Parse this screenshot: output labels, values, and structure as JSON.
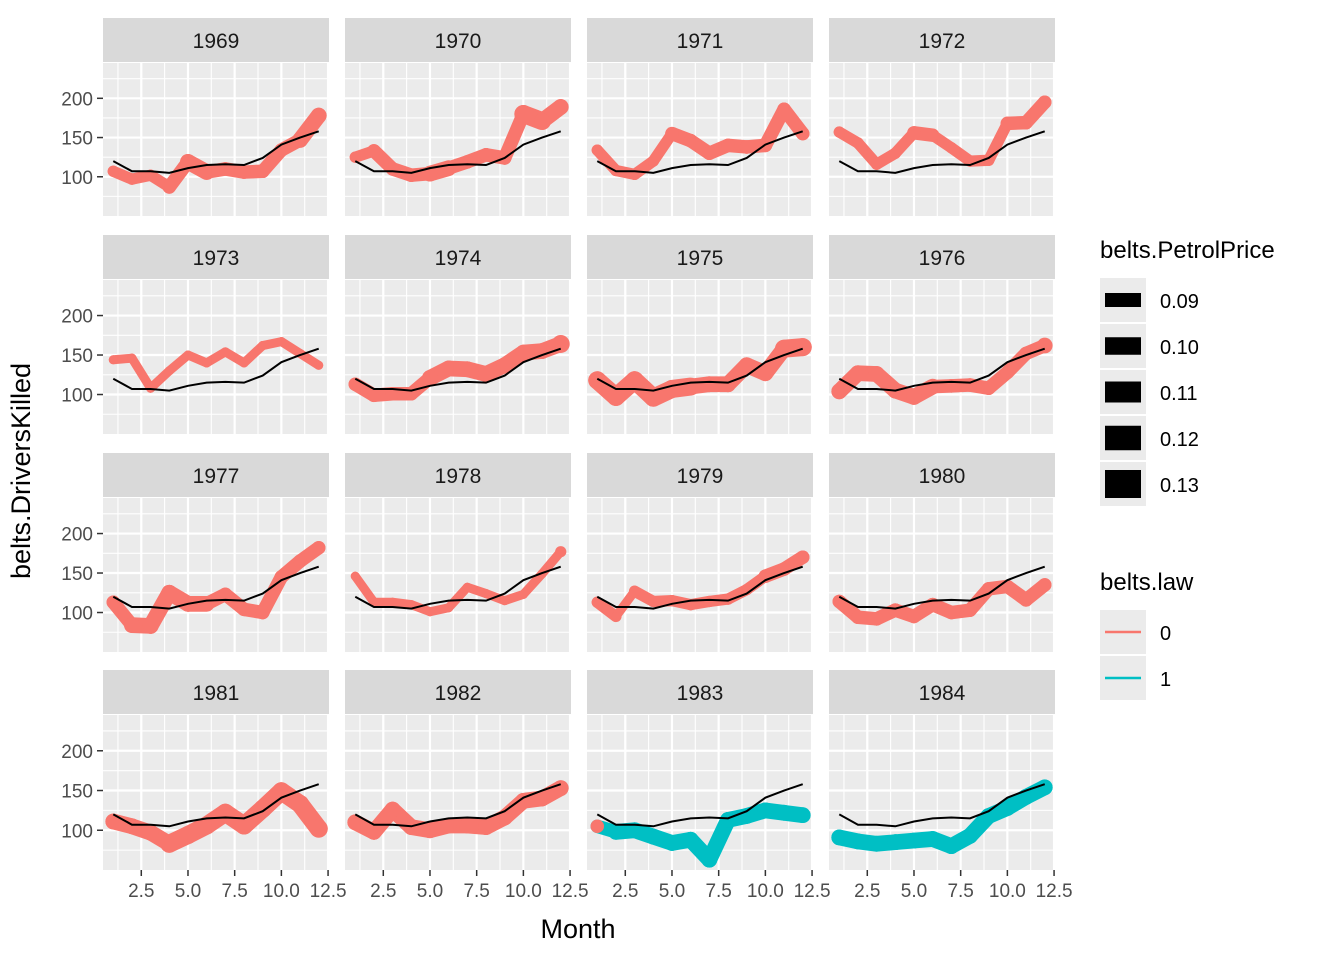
{
  "chart_data": {
    "type": "line",
    "xlabel": "Month",
    "ylabel": "belts.DriversKilled",
    "xlim": [
      0.45,
      12.55
    ],
    "ylim": [
      50,
      245
    ],
    "x_ticks": [
      2.5,
      5.0,
      7.5,
      10.0,
      12.5
    ],
    "x_tick_labels": [
      "2.5",
      "5.0",
      "7.5",
      "10.0",
      "12.5"
    ],
    "y_ticks": [
      100,
      150,
      200
    ],
    "y_tick_labels": [
      "100",
      "150",
      "200"
    ],
    "months": [
      1,
      2,
      3,
      4,
      5,
      6,
      7,
      8,
      9,
      10,
      11,
      12
    ],
    "reference_line": [
      120,
      107,
      107,
      105,
      111,
      115,
      116,
      115,
      124,
      141,
      150,
      158
    ],
    "panels": [
      {
        "year": "1969",
        "law": [
          0,
          0,
          0,
          0,
          0,
          0,
          0,
          0,
          0,
          0,
          0,
          0
        ],
        "petrol": [
          0.1,
          0.1,
          0.1,
          0.11,
          0.12,
          0.11,
          0.11,
          0.11,
          0.11,
          0.11,
          0.12,
          0.12
        ],
        "values": [
          107,
          97,
          102,
          87,
          119,
          106,
          110,
          106,
          107,
          134,
          147,
          178
        ]
      },
      {
        "year": "1970",
        "law": [
          0,
          0,
          0,
          0,
          0,
          0,
          0,
          0,
          0,
          0,
          0,
          0
        ],
        "petrol": [
          0.1,
          0.11,
          0.11,
          0.11,
          0.12,
          0.11,
          0.11,
          0.11,
          0.11,
          0.13,
          0.12,
          0.12
        ],
        "values": [
          125,
          133,
          110,
          102,
          104,
          111,
          119,
          128,
          124,
          180,
          171,
          189
        ]
      },
      {
        "year": "1971",
        "law": [
          0,
          0,
          0,
          0,
          0,
          0,
          0,
          0,
          0,
          0,
          0,
          0
        ],
        "petrol": [
          0.1,
          0.1,
          0.1,
          0.1,
          0.11,
          0.11,
          0.11,
          0.11,
          0.11,
          0.11,
          0.11,
          0.11
        ],
        "values": [
          134,
          108,
          103,
          120,
          155,
          146,
          130,
          140,
          138,
          140,
          186,
          155
        ]
      },
      {
        "year": "1972",
        "law": [
          0,
          0,
          0,
          0,
          0,
          0,
          0,
          0,
          0,
          0,
          0,
          0
        ],
        "petrol": [
          0.1,
          0.1,
          0.1,
          0.1,
          0.11,
          0.1,
          0.1,
          0.1,
          0.1,
          0.11,
          0.11,
          0.11
        ],
        "values": [
          157,
          143,
          116,
          130,
          156,
          153,
          137,
          120,
          121,
          168,
          169,
          195
        ]
      },
      {
        "year": "1973",
        "law": [
          0,
          0,
          0,
          0,
          0,
          0,
          0,
          0,
          0,
          0,
          0,
          0
        ],
        "petrol": [
          0.09,
          0.09,
          0.09,
          0.09,
          0.09,
          0.09,
          0.09,
          0.09,
          0.09,
          0.09,
          0.09,
          0.09
        ],
        "values": [
          144,
          146,
          108,
          130,
          150,
          140,
          154,
          140,
          162,
          167,
          152,
          137
        ]
      },
      {
        "year": "1974",
        "law": [
          0,
          0,
          0,
          0,
          0,
          0,
          0,
          0,
          0,
          0,
          0,
          0
        ],
        "petrol": [
          0.11,
          0.11,
          0.11,
          0.11,
          0.12,
          0.12,
          0.12,
          0.12,
          0.12,
          0.12,
          0.12,
          0.13
        ],
        "values": [
          113,
          99,
          101,
          101,
          121,
          133,
          132,
          126,
          137,
          153,
          155,
          164
        ]
      },
      {
        "year": "1975",
        "law": [
          0,
          0,
          0,
          0,
          0,
          0,
          0,
          0,
          0,
          0,
          0,
          0
        ],
        "petrol": [
          0.13,
          0.13,
          0.13,
          0.13,
          0.13,
          0.12,
          0.12,
          0.12,
          0.12,
          0.12,
          0.13,
          0.13
        ],
        "values": [
          118,
          97,
          118,
          96,
          107,
          110,
          113,
          113,
          137,
          127,
          158,
          160
        ]
      },
      {
        "year": "1976",
        "law": [
          0,
          0,
          0,
          0,
          0,
          0,
          0,
          0,
          0,
          0,
          0,
          0
        ],
        "petrol": [
          0.12,
          0.12,
          0.12,
          0.12,
          0.12,
          0.11,
          0.11,
          0.11,
          0.11,
          0.11,
          0.11,
          0.12
        ],
        "values": [
          104,
          127,
          126,
          105,
          97,
          110,
          111,
          112,
          108,
          128,
          152,
          162
        ]
      },
      {
        "year": "1977",
        "law": [
          0,
          0,
          0,
          0,
          0,
          0,
          0,
          0,
          0,
          0,
          0,
          0
        ],
        "petrol": [
          0.11,
          0.12,
          0.12,
          0.12,
          0.12,
          0.11,
          0.11,
          0.11,
          0.11,
          0.11,
          0.11,
          0.11
        ],
        "values": [
          113,
          84,
          83,
          125,
          111,
          111,
          123,
          104,
          100,
          145,
          165,
          182
        ]
      },
      {
        "year": "1978",
        "law": [
          0,
          0,
          0,
          0,
          0,
          0,
          0,
          0,
          0,
          0,
          0,
          0
        ],
        "petrol": [
          0.09,
          0.09,
          0.09,
          0.09,
          0.09,
          0.09,
          0.09,
          0.09,
          0.09,
          0.09,
          0.09,
          0.1
        ],
        "values": [
          146,
          113,
          113,
          110,
          101,
          106,
          132,
          124,
          115,
          123,
          149,
          177
        ]
      },
      {
        "year": "1979",
        "law": [
          0,
          0,
          0,
          0,
          0,
          0,
          0,
          0,
          0,
          0,
          0,
          0
        ],
        "petrol": [
          0.1,
          0.09,
          0.1,
          0.1,
          0.1,
          0.1,
          0.1,
          0.1,
          0.1,
          0.11,
          0.11,
          0.11
        ],
        "values": [
          113,
          95,
          127,
          114,
          115,
          110,
          114,
          117,
          129,
          146,
          155,
          170
        ]
      },
      {
        "year": "1980",
        "law": [
          0,
          0,
          0,
          0,
          0,
          0,
          0,
          0,
          0,
          0,
          0,
          0
        ],
        "petrol": [
          0.11,
          0.11,
          0.11,
          0.11,
          0.11,
          0.11,
          0.11,
          0.11,
          0.11,
          0.11,
          0.11,
          0.11
        ],
        "values": [
          114,
          94,
          92,
          103,
          95,
          110,
          100,
          103,
          130,
          133,
          116,
          135
        ]
      },
      {
        "year": "1981",
        "law": [
          0,
          0,
          0,
          0,
          0,
          0,
          0,
          0,
          0,
          0,
          0,
          0
        ],
        "petrol": [
          0.12,
          0.12,
          0.12,
          0.13,
          0.13,
          0.13,
          0.13,
          0.13,
          0.13,
          0.13,
          0.13,
          0.13
        ],
        "values": [
          111,
          105,
          97,
          83,
          94,
          106,
          122,
          106,
          127,
          149,
          133,
          102
        ]
      },
      {
        "year": "1982",
        "law": [
          0,
          0,
          0,
          0,
          0,
          0,
          0,
          0,
          0,
          0,
          0,
          0
        ],
        "petrol": [
          0.12,
          0.12,
          0.12,
          0.12,
          0.12,
          0.12,
          0.12,
          0.12,
          0.12,
          0.12,
          0.12,
          0.12
        ],
        "values": [
          110,
          98,
          126,
          104,
          100,
          106,
          106,
          104,
          116,
          137,
          140,
          153
        ]
      },
      {
        "year": "1983",
        "law": [
          0,
          1,
          1,
          1,
          1,
          1,
          1,
          1,
          1,
          1,
          1,
          1
        ],
        "petrol": [
          0.11,
          0.12,
          0.12,
          0.12,
          0.12,
          0.12,
          0.12,
          0.12,
          0.12,
          0.12,
          0.12,
          0.12
        ],
        "values": [
          105,
          98,
          100,
          92,
          84,
          88,
          63,
          113,
          118,
          125,
          122,
          119
        ]
      },
      {
        "year": "1984",
        "law": [
          1,
          1,
          1,
          1,
          1,
          1,
          1,
          1,
          1,
          1,
          1,
          1
        ],
        "petrol": [
          0.12,
          0.12,
          0.12,
          0.12,
          0.12,
          0.12,
          0.12,
          0.12,
          0.12,
          0.12,
          0.12,
          0.12
        ],
        "values": [
          91,
          86,
          83,
          85,
          87,
          89,
          80,
          93,
          118,
          128,
          142,
          154
        ]
      }
    ],
    "legend_petrol": {
      "title": "belts.PetrolPrice",
      "entries": [
        "0.09",
        "0.10",
        "0.11",
        "0.12",
        "0.13"
      ]
    },
    "legend_law": {
      "title": "belts.law",
      "entries": [
        "0",
        "1"
      ]
    },
    "legend_placement": "right",
    "grid": true,
    "colors": {
      "law0": "#F8766D",
      "law1": "#00BFC4",
      "reference": "#000000",
      "panel_bg": "#EBEBEB",
      "strip_bg": "#D9D9D9",
      "grid_major": "#FFFFFF"
    }
  }
}
